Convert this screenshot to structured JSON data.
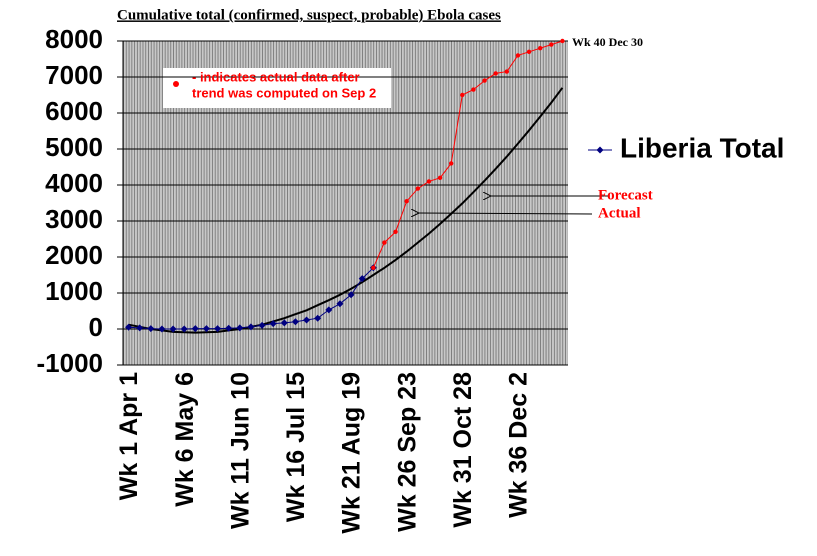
{
  "chart_data": {
    "type": "line",
    "title": "Cumulative total (confirmed, suspect, probable) Ebola cases",
    "categories": [
      "Wk 1 Apr 1",
      null,
      null,
      null,
      null,
      "Wk 6 May 6",
      null,
      null,
      null,
      null,
      "Wk 11 Jun 10",
      null,
      null,
      null,
      null,
      "Wk 16 Jul 15",
      null,
      null,
      null,
      null,
      "Wk 21 Aug 19",
      null,
      null,
      null,
      null,
      "Wk 26 Sep 23",
      null,
      null,
      null,
      null,
      "Wk 31 Oct 28",
      null,
      null,
      null,
      null,
      "Wk 36 Dec 2",
      null,
      null,
      null,
      null
    ],
    "series": [
      {
        "color": "#000000",
        "values": [
          120,
          60,
          0,
          -40,
          -80,
          -90,
          -100,
          -90,
          -80,
          -40,
          0,
          60,
          120,
          210,
          300,
          410,
          520,
          660,
          800,
          950,
          1120,
          1300,
          1500,
          1700,
          1920,
          2150,
          2400,
          2650,
          2920,
          3200,
          3490,
          3800,
          4120,
          4450,
          4790,
          5150,
          5520,
          5900,
          6290,
          6700
        ]
      },
      {
        "name": "Liberia Total",
        "color": "#000080",
        "marker": "diamond",
        "values": [
          50,
          30,
          10,
          0,
          0,
          0,
          10,
          10,
          10,
          20,
          30,
          60,
          100,
          150,
          170,
          200,
          250,
          300,
          530,
          700,
          950,
          1400,
          1700,
          null,
          null,
          null,
          null,
          null,
          null,
          null,
          null,
          null,
          null,
          null,
          null,
          null,
          null,
          null,
          null,
          null
        ]
      },
      {
        "color": "#ff0000",
        "marker": "circle",
        "values": [
          null,
          null,
          null,
          null,
          null,
          null,
          null,
          null,
          null,
          null,
          null,
          null,
          null,
          null,
          null,
          null,
          null,
          null,
          null,
          null,
          null,
          null,
          1700,
          2400,
          2700,
          3550,
          3900,
          4100,
          4200,
          4600,
          6500,
          6650,
          6900,
          7100,
          7150,
          7600,
          7700,
          7800,
          7900,
          8000
        ]
      }
    ],
    "ylim": [
      -1000,
      8000
    ],
    "yticks": [
      -1000,
      0,
      1000,
      2000,
      3000,
      4000,
      5000,
      6000,
      7000,
      8000
    ],
    "grid": true,
    "legend": "right",
    "end_label": "Wk 40 Dec 30",
    "note_color": "#ff0000",
    "note_lines": [
      "- indicates actual data after",
      "trend was computed on Sep 2"
    ],
    "annotations": [
      {
        "text": "Forecast",
        "color": "#ff0000"
      },
      {
        "text": "Actual",
        "color": "#ff0000"
      }
    ]
  }
}
